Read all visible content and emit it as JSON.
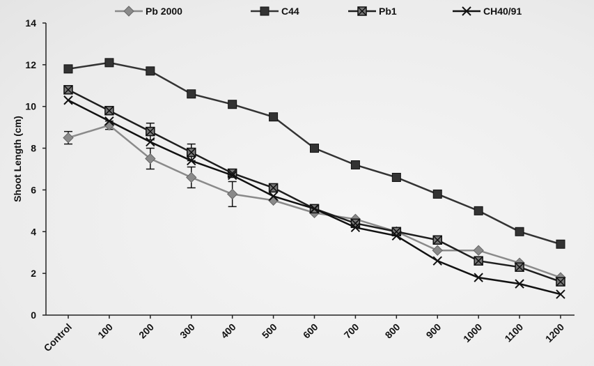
{
  "chart_data": {
    "type": "line",
    "categories": [
      "Control",
      "100",
      "200",
      "300",
      "400",
      "500",
      "600",
      "700",
      "800",
      "900",
      "1000",
      "1100",
      "1200"
    ],
    "ylabel": "Shoot Length (cm)",
    "xlabel": "",
    "ylim": [
      0,
      14
    ],
    "yticks": [
      0,
      2,
      4,
      6,
      8,
      10,
      12,
      14
    ],
    "grid": false,
    "legend_position": "top",
    "series": [
      {
        "name": "Pb 2000",
        "color": "#8a8a8a",
        "marker": "diamond",
        "values": [
          8.5,
          9.1,
          7.5,
          6.6,
          5.8,
          5.5,
          4.9,
          4.6,
          4.0,
          3.1,
          3.1,
          2.5,
          1.8
        ],
        "errors": [
          0.3,
          0.2,
          0.5,
          0.5,
          0.6,
          0,
          0,
          0,
          0,
          0,
          0,
          0,
          0
        ]
      },
      {
        "name": "C44",
        "color": "#333333",
        "marker": "square",
        "values": [
          11.8,
          12.1,
          11.7,
          10.6,
          10.1,
          9.5,
          8.0,
          7.2,
          6.6,
          5.8,
          5.0,
          4.0,
          3.4
        ],
        "errors": [
          0,
          0,
          0,
          0,
          0,
          0,
          0,
          0,
          0,
          0,
          0,
          0,
          0
        ]
      },
      {
        "name": "Pb1",
        "color": "#1e1e1e",
        "marker": "xsquare",
        "values": [
          10.8,
          9.8,
          8.8,
          7.8,
          6.8,
          6.1,
          5.1,
          4.4,
          4.0,
          3.6,
          2.6,
          2.3,
          1.6
        ],
        "errors": [
          0,
          0,
          0.4,
          0.4,
          0,
          0,
          0,
          0,
          0,
          0,
          0,
          0,
          0
        ]
      },
      {
        "name": "CH40/91",
        "color": "#111111",
        "marker": "x",
        "values": [
          10.3,
          9.3,
          8.3,
          7.4,
          6.7,
          5.7,
          5.1,
          4.2,
          3.8,
          2.6,
          1.8,
          1.5,
          1.0
        ],
        "errors": [
          0,
          0,
          0,
          0,
          0,
          0,
          0,
          0,
          0,
          0,
          0,
          0,
          0
        ]
      }
    ]
  }
}
